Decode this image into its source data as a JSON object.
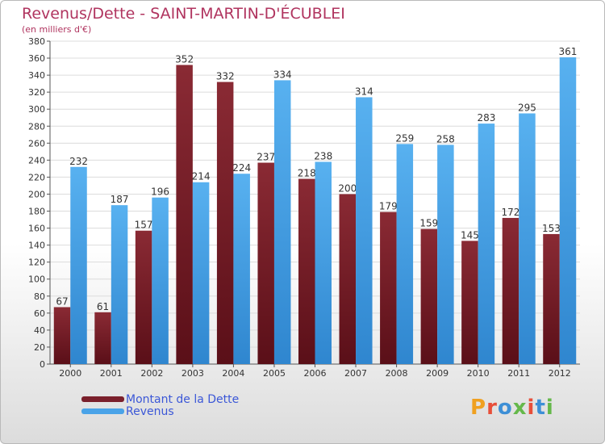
{
  "title": "Revenus/Dette - SAINT-MARTIN-D'ÉCUBLEI",
  "subtitle": "(en milliers d'€)",
  "legend": {
    "debt": "Montant de la Dette",
    "revenue": "Revenus"
  },
  "logo": {
    "text": "Proxiti"
  },
  "colors": {
    "debt": "#7a1f2b",
    "revenue": "#4aa3e8",
    "title": "#b0345f",
    "legend_text": "#3b57d7",
    "logo_letters": [
      "#f0a020",
      "#e84f3a",
      "#3d8fd6",
      "#65b84a",
      "#e84f3a",
      "#3d8fd6",
      "#65b84a"
    ]
  },
  "chart_data": {
    "type": "bar",
    "categories": [
      "2000",
      "2001",
      "2002",
      "2003",
      "2004",
      "2005",
      "2006",
      "2007",
      "2008",
      "2009",
      "2010",
      "2011",
      "2012"
    ],
    "series": [
      {
        "name": "Montant de la Dette",
        "values": [
          67,
          61,
          157,
          352,
          332,
          237,
          218,
          200,
          179,
          159,
          145,
          172,
          153
        ]
      },
      {
        "name": "Revenus",
        "values": [
          232,
          187,
          196,
          214,
          224,
          334,
          238,
          314,
          259,
          258,
          283,
          295,
          361
        ]
      }
    ],
    "ylim": [
      0,
      380
    ],
    "yticks": [
      0,
      20,
      40,
      60,
      80,
      100,
      120,
      140,
      160,
      180,
      200,
      220,
      240,
      260,
      280,
      300,
      320,
      340,
      360,
      380
    ],
    "grid": true,
    "legend_position": "bottom-left"
  }
}
